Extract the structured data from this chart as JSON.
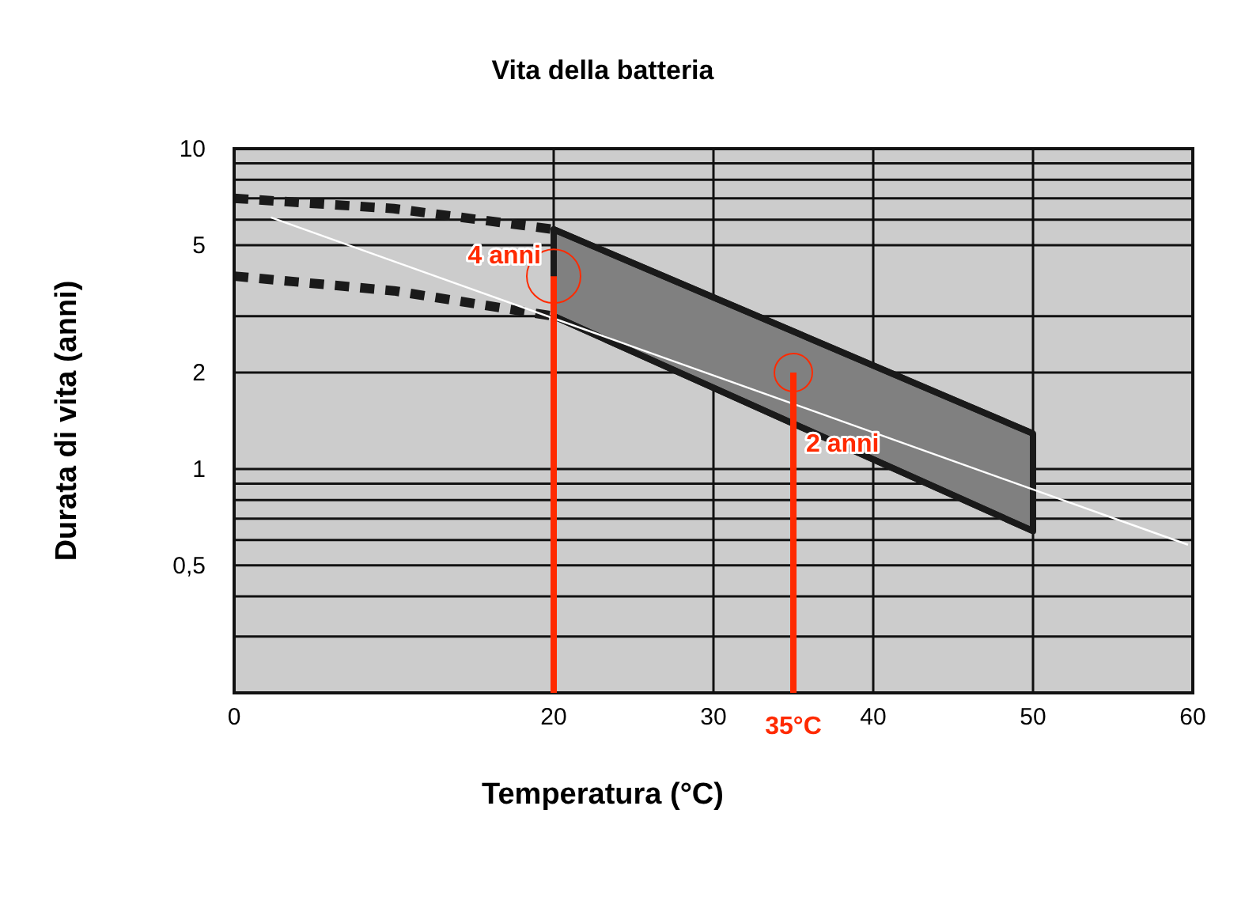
{
  "chart_data": {
    "type": "line",
    "title": "Vita della batteria",
    "xlabel": "Temperatura (°C)",
    "ylabel": "Durata di vita (anni)",
    "log": "y",
    "grid": true,
    "xlim": [
      0,
      60
    ],
    "ylim": [
      0.2,
      10
    ],
    "xticks": [
      0,
      20,
      30,
      40,
      50,
      60
    ],
    "yticks": [
      10,
      {
        "value": 9,
        "label": null
      },
      {
        "value": 8,
        "label": null
      },
      {
        "value": 7,
        "label": null
      },
      {
        "value": 6,
        "label": null
      },
      5,
      {
        "value": 3,
        "label": null
      },
      2,
      1,
      {
        "value": 0.9,
        "label": null
      },
      {
        "value": 0.8,
        "label": null
      },
      {
        "value": 0.7,
        "label": null
      },
      {
        "value": 0.6,
        "label": null
      },
      {
        "value": 0.5,
        "label": "0,5"
      },
      {
        "value": 0.4,
        "label": null
      },
      {
        "value": 0.3,
        "label": null
      }
    ],
    "series": [
      {
        "color": "#1a1a1a",
        "x": [
          20,
          50
        ],
        "values": [
          5.6,
          1.29
        ],
        "lower": [
          3.0,
          0.64
        ],
        "upper": [
          5.6,
          1.29
        ]
      },
      {
        "color": "#1a1a1a",
        "x": [
          20,
          50
        ],
        "values": [
          3.0,
          0.64
        ]
      },
      {
        "color": "#1a1a1a",
        "line_style": "dashed",
        "x": [
          0,
          10,
          20
        ],
        "values": [
          7.0,
          6.5,
          5.6
        ]
      },
      {
        "color": "#1a1a1a",
        "line_style": "dashed",
        "x": [
          0,
          10,
          20
        ],
        "values": [
          4.0,
          3.6,
          3.0
        ]
      },
      {
        "color": "#ffffff",
        "x": [
          2.3,
          59.7
        ],
        "values": [
          6.1,
          0.58
        ]
      }
    ],
    "ref_lines": [
      {
        "axis": "x",
        "value": 20,
        "color": "#ff2a00"
      },
      {
        "axis": "x",
        "value": 35,
        "label": "35°C",
        "color": "#ff2a00"
      }
    ],
    "annotations": [
      {
        "text": "4 anni",
        "x": 20,
        "y": 4
      },
      {
        "text": "2 anni",
        "x": 35,
        "y": 2
      }
    ]
  }
}
